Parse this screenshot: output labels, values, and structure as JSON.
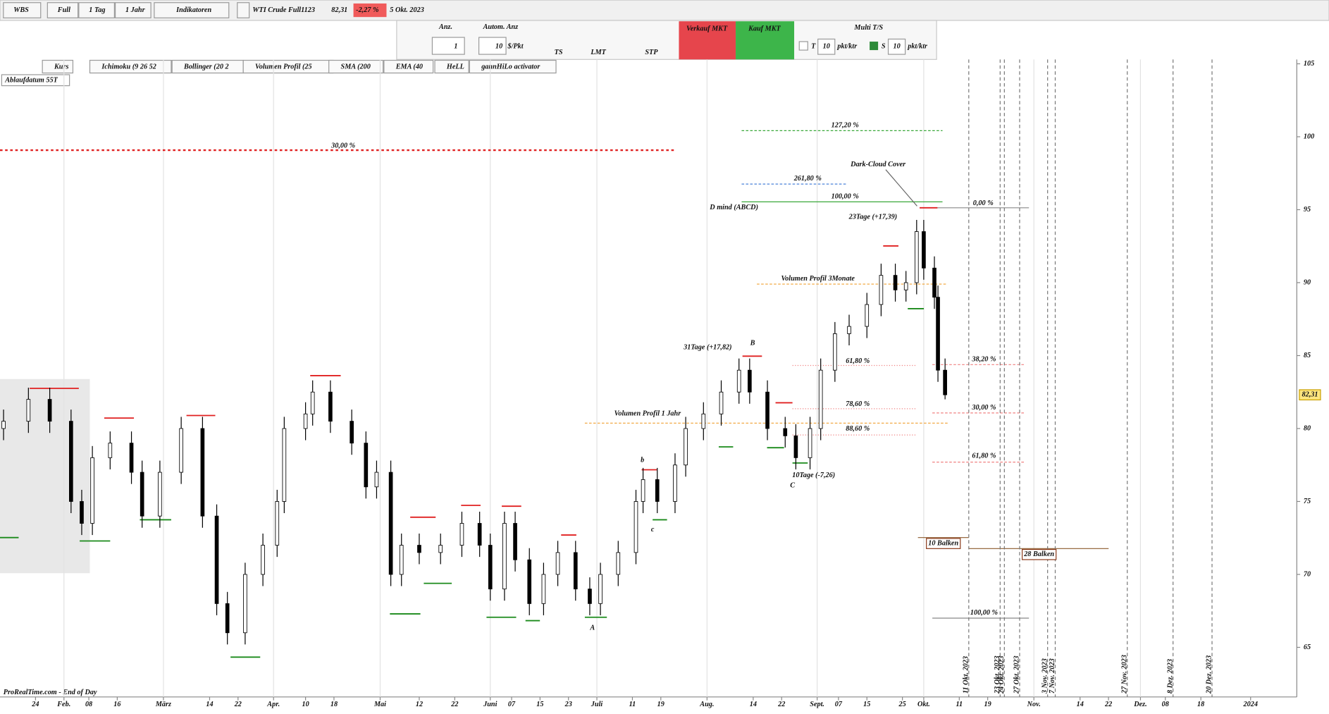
{
  "toolbar": {
    "account": "WBS",
    "mode": "Full",
    "period": "1 Tag",
    "range": "1 Jahr",
    "indicators": "Indikatoren",
    "instrument": "WTI Crude Full1123",
    "price": "82,31",
    "change": "-2,27 %",
    "date": "5 Okt. 2023"
  },
  "order_panel": {
    "qty_label": "Anz.",
    "auto_qty": "Autom. Anz",
    "qty": "1",
    "point_value": "10",
    "point_unit": "$/Pkt",
    "ts": "TS",
    "lmt": "LMT",
    "stp": "STP",
    "sell": "Verkauf MKT",
    "buy": "Kauf MKT",
    "multi": "Multi T/S",
    "t_label": "T",
    "t_value": "10",
    "t_unit": "pkt/ktr",
    "s_label": "S",
    "s_value": "10",
    "s_unit": "pkt/ktr"
  },
  "indicators": [
    "Kurs",
    "Ichimoku (9 26 52",
    "Bollinger (20 2",
    "Volumen Profil (25",
    "SMA (200",
    "EMA (40",
    "HeLL",
    "gannHiLo activator"
  ],
  "expiry": "Ablaufdatum 55T",
  "footer": "ProRealTime.com - End of Day",
  "last_price_label": "82,31",
  "chart_data": {
    "type": "candlestick",
    "x": [
      15,
      22,
      28,
      34,
      37,
      40,
      45,
      51,
      54,
      59,
      65,
      71,
      75,
      78,
      83,
      88,
      92,
      94,
      100,
      102,
      107,
      113,
      117,
      120,
      124,
      127,
      132,
      138,
      144,
      149,
      152,
      156,
      159,
      163,
      167,
      171,
      176,
      180,
      183,
      188,
      193,
      195,
      199,
      204,
      207,
      212,
      217,
      222,
      225,
      230,
      235,
      238,
      242,
      245,
      249,
      253,
      258,
      262,
      266,
      269,
      272,
      274,
      277,
      278,
      280
    ],
    "open": [
      80,
      80.5,
      82,
      80.5,
      75,
      73.5,
      78,
      79,
      77,
      74,
      77,
      80,
      74,
      68,
      66,
      70,
      72,
      75,
      80,
      81,
      82.5,
      80.5,
      79,
      76,
      77,
      70,
      72,
      71.5,
      72,
      73.5,
      72,
      69,
      73.5,
      71,
      68,
      70,
      71.5,
      69,
      68,
      70,
      71.5,
      75,
      76.5,
      75,
      77.5,
      80,
      81,
      82.5,
      84,
      82.5,
      80,
      79.5,
      78,
      80,
      84,
      86.5,
      87,
      88.5,
      90.5,
      89.5,
      90,
      93.5,
      91,
      89,
      84
    ],
    "high": [
      81.3,
      82.8,
      82.8,
      81.3,
      75.8,
      78.8,
      79.8,
      79.8,
      77.8,
      77.8,
      80.8,
      80.8,
      74.8,
      68.8,
      70.8,
      72.8,
      75.8,
      80.8,
      81.8,
      83.3,
      83.3,
      81.3,
      79.8,
      77.8,
      77.8,
      72.8,
      72.8,
      72.8,
      74.3,
      74.3,
      72.8,
      74.3,
      74.3,
      71.8,
      70.8,
      72.3,
      72.3,
      69.8,
      70.8,
      72.3,
      75.8,
      77.3,
      77.3,
      78.3,
      80.8,
      81.8,
      83.3,
      84.8,
      84.8,
      83.3,
      80.8,
      80.3,
      80.8,
      84.8,
      87.3,
      87.8,
      89.3,
      91.3,
      91.3,
      90.8,
      94.3,
      94.3,
      91.8,
      89.8,
      84.8
    ],
    "low": [
      79.2,
      79.7,
      79.7,
      74.2,
      72.7,
      72.7,
      77.2,
      76.2,
      73.2,
      73.2,
      76.2,
      73.2,
      67.2,
      65.2,
      65.2,
      69.2,
      71.2,
      74.2,
      79.2,
      80.2,
      79.7,
      78.2,
      75.2,
      75.2,
      69.2,
      69.2,
      70.7,
      70.7,
      71.2,
      71.2,
      68.2,
      68.2,
      70.2,
      67.2,
      67.2,
      69.2,
      68.2,
      67.2,
      67.2,
      69.2,
      70.7,
      74.2,
      74.2,
      74.2,
      76.7,
      79.2,
      80.2,
      81.7,
      81.7,
      79.2,
      78.7,
      77.2,
      77.2,
      79.2,
      83.2,
      85.7,
      86.2,
      87.7,
      88.7,
      88.7,
      89.2,
      90.2,
      88.2,
      83.2,
      82
    ],
    "close": [
      80.5,
      82,
      80.5,
      75,
      73.5,
      78,
      79,
      77,
      74,
      77,
      80,
      74,
      68,
      66,
      70,
      72,
      75,
      80,
      81,
      82.5,
      80.5,
      79,
      76,
      77,
      70,
      72,
      71.5,
      72,
      73.5,
      72,
      69,
      73.5,
      71,
      68,
      70,
      71.5,
      69,
      68,
      70,
      71.5,
      75,
      76.5,
      75,
      77.5,
      80,
      81,
      82.5,
      84,
      82.5,
      80,
      79.5,
      78,
      80,
      84,
      86.5,
      87,
      88.5,
      90.5,
      89.5,
      90,
      93.5,
      91,
      89,
      84,
      82.31
    ],
    "up_color": "#ffffff",
    "down_color": "#000000",
    "xlim": [
      14,
      379
    ],
    "xticks": [
      {
        "value": 24,
        "label": "24"
      },
      {
        "value": 32,
        "label": "Feb."
      },
      {
        "value": 39,
        "label": "08"
      },
      {
        "value": 47,
        "label": "16"
      },
      {
        "value": 60,
        "label": "März"
      },
      {
        "value": 73,
        "label": "14"
      },
      {
        "value": 81,
        "label": "22"
      },
      {
        "value": 91,
        "label": "Apr."
      },
      {
        "value": 100,
        "label": "10"
      },
      {
        "value": 108,
        "label": "18"
      },
      {
        "value": 121,
        "label": "Mai"
      },
      {
        "value": 132,
        "label": "12"
      },
      {
        "value": 142,
        "label": "22"
      },
      {
        "value": 152,
        "label": "Juni"
      },
      {
        "value": 158,
        "label": "07"
      },
      {
        "value": 166,
        "label": "15"
      },
      {
        "value": 174,
        "label": "23"
      },
      {
        "value": 182,
        "label": "Juli"
      },
      {
        "value": 192,
        "label": "11"
      },
      {
        "value": 200,
        "label": "19"
      },
      {
        "value": 213,
        "label": "Aug."
      },
      {
        "value": 226,
        "label": "14"
      },
      {
        "value": 234,
        "label": "22"
      },
      {
        "value": 244,
        "label": "Sept."
      },
      {
        "value": 250,
        "label": "07"
      },
      {
        "value": 258,
        "label": "15"
      },
      {
        "value": 268,
        "label": "25"
      },
      {
        "value": 274,
        "label": "Okt."
      },
      {
        "value": 284,
        "label": "11"
      },
      {
        "value": 292,
        "label": "19"
      },
      {
        "value": 305,
        "label": "Nov."
      },
      {
        "value": 318,
        "label": "14"
      },
      {
        "value": 326,
        "label": "22"
      },
      {
        "value": 335,
        "label": "Dez."
      },
      {
        "value": 342,
        "label": "08"
      },
      {
        "value": 352,
        "label": "18"
      },
      {
        "value": 366,
        "label": "2024"
      }
    ],
    "ylim": [
      61.6,
      105.3
    ],
    "yticks": [
      65,
      70,
      75,
      80,
      85,
      90,
      95,
      100,
      105
    ],
    "annotations": [
      "30,00 %",
      "127,20 %",
      "261,80 %",
      "100,00 %",
      "D mind (ABCD)",
      "Dark-Cloud Cover",
      "0,00 %",
      "23Tage (+17,39)",
      "Volumen Profil 3Monate",
      "61,80 %",
      "38,20 %",
      "31Tage (+17,82)",
      "B",
      "78,60 %",
      "88,60 %",
      "30,00 %",
      "Volumen Profil 1 Jahr",
      "61,80 %",
      "b",
      "c",
      "10Tage (-7,26)",
      "C",
      "A",
      "10 Balken",
      "28 Balken",
      "100,00 %"
    ],
    "date_markers": [
      "11 Okt. 2023",
      "23 Okt. 2023",
      "24 Okt. 2023",
      "27 Okt. 2023",
      "3 Nov. 2023",
      "7 Nov. 2023",
      "27 Nov. 2023",
      "8 Dez. 2023",
      "20 Dez. 2023"
    ]
  }
}
